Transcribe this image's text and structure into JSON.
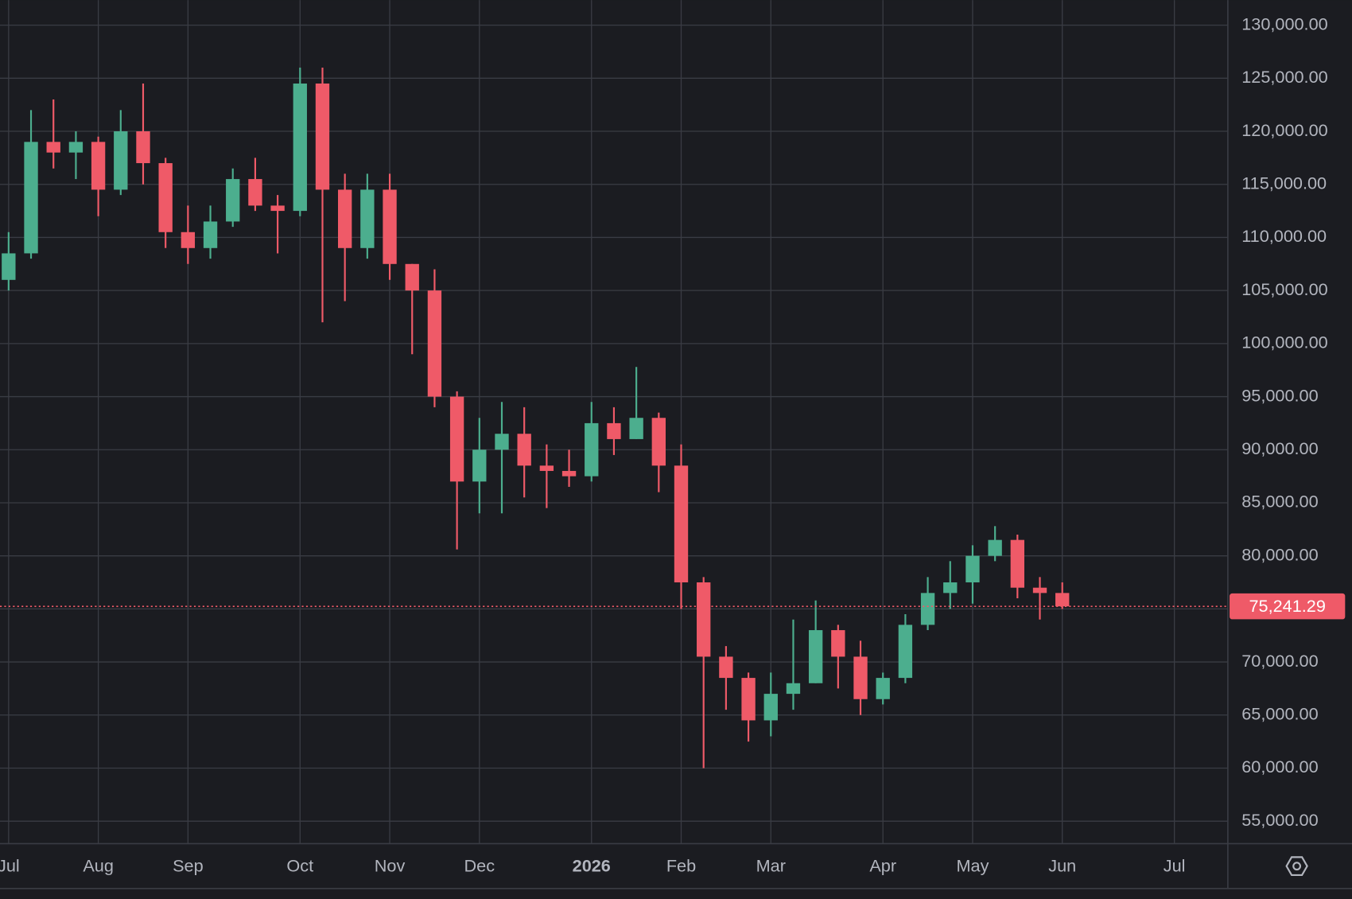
{
  "chart_data": {
    "type": "candlestick",
    "categories": [
      "Jul",
      null,
      null,
      null,
      "Aug",
      null,
      null,
      null,
      "Sep",
      null,
      null,
      null,
      null,
      "Oct",
      null,
      null,
      null,
      "Nov",
      null,
      null,
      null,
      "Dec",
      null,
      null,
      null,
      null,
      "2026",
      null,
      null,
      null,
      "Feb",
      null,
      null,
      null,
      "Mar",
      null,
      null,
      null,
      null,
      "Apr",
      null,
      null,
      null,
      "May",
      null,
      null,
      null,
      "Jun",
      null,
      null,
      null,
      null,
      "Jul",
      null,
      null,
      null
    ],
    "open": [
      106000,
      108500,
      119000,
      118000,
      119000,
      114500,
      120000,
      117000,
      110500,
      109000,
      111500,
      115500,
      113000,
      112500,
      124500,
      114500,
      109000,
      114500,
      107500,
      105000,
      95000,
      87000,
      90000,
      91500,
      88500,
      88000,
      87500,
      92500,
      91000,
      93000,
      88500,
      77500,
      70500,
      68500,
      64500,
      67000,
      68000,
      73000,
      70500,
      66500,
      68500,
      73500,
      76500,
      77500,
      80000,
      81500,
      77000,
      76500,
      null,
      null,
      null,
      null,
      null,
      null,
      null,
      null
    ],
    "high": [
      110500,
      122000,
      123000,
      120000,
      119500,
      122000,
      124500,
      117500,
      113000,
      113000,
      116500,
      117500,
      114000,
      126000,
      126000,
      116000,
      116000,
      116000,
      107500,
      107000,
      95500,
      93000,
      94500,
      94000,
      90500,
      90000,
      94500,
      94000,
      97800,
      93500,
      90500,
      78000,
      71500,
      69000,
      69000,
      74000,
      75800,
      73500,
      72000,
      69000,
      74500,
      78000,
      79500,
      81000,
      82800,
      82000,
      78000,
      77500,
      null,
      null,
      null,
      null,
      null,
      null,
      null,
      null
    ],
    "low": [
      105000,
      108000,
      116500,
      115500,
      112000,
      114000,
      115000,
      109000,
      107500,
      108000,
      111000,
      112500,
      108500,
      112000,
      102000,
      104000,
      108000,
      106000,
      99000,
      94000,
      80600,
      84000,
      84000,
      85500,
      84500,
      86500,
      87000,
      89500,
      91000,
      86000,
      75000,
      60000,
      65500,
      62500,
      63000,
      65500,
      68000,
      67500,
      65000,
      66000,
      68000,
      73000,
      75000,
      75500,
      79500,
      76000,
      74000,
      75000,
      null,
      null,
      null,
      null,
      null,
      null,
      null,
      null
    ],
    "close": [
      108500,
      119000,
      118000,
      119000,
      114500,
      120000,
      117000,
      110500,
      109000,
      111500,
      115500,
      113000,
      112500,
      124500,
      114500,
      109000,
      114500,
      107500,
      105000,
      95000,
      87000,
      90000,
      91500,
      88500,
      88000,
      87500,
      92500,
      91000,
      93000,
      88500,
      77500,
      70500,
      68500,
      64500,
      67000,
      68000,
      73000,
      70500,
      66500,
      68500,
      73500,
      76500,
      77500,
      80000,
      81500,
      77000,
      76500,
      75241.29,
      null,
      null,
      null,
      null,
      null,
      null,
      null,
      null
    ],
    "up_color": "#4cae8e",
    "down_color": "#ef5a68",
    "ylim": [
      52880,
      132360
    ],
    "yticks": [
      {
        "value": 55000,
        "label": "55,000.00"
      },
      {
        "value": 60000,
        "label": "60,000.00"
      },
      {
        "value": 65000,
        "label": "65,000.00"
      },
      {
        "value": 70000,
        "label": "70,000.00"
      },
      {
        "value": 75000,
        "label": "75,000.00"
      },
      {
        "value": 80000,
        "label": "80,000.00"
      },
      {
        "value": 85000,
        "label": "85,000.00"
      },
      {
        "value": 90000,
        "label": "90,000.00"
      },
      {
        "value": 95000,
        "label": "95,000.00"
      },
      {
        "value": 100000,
        "label": "100,000.00"
      },
      {
        "value": 105000,
        "label": "105,000.00"
      },
      {
        "value": 110000,
        "label": "110,000.00"
      },
      {
        "value": 115000,
        "label": "115,000.00"
      },
      {
        "value": 120000,
        "label": "120,000.00"
      },
      {
        "value": 125000,
        "label": "125,000.00"
      },
      {
        "value": 130000,
        "label": "130,000.00"
      }
    ],
    "last_price": {
      "value": 75241.29,
      "label": "75,241.29"
    },
    "last_price_color": "#ef5a68",
    "grid": true
  }
}
